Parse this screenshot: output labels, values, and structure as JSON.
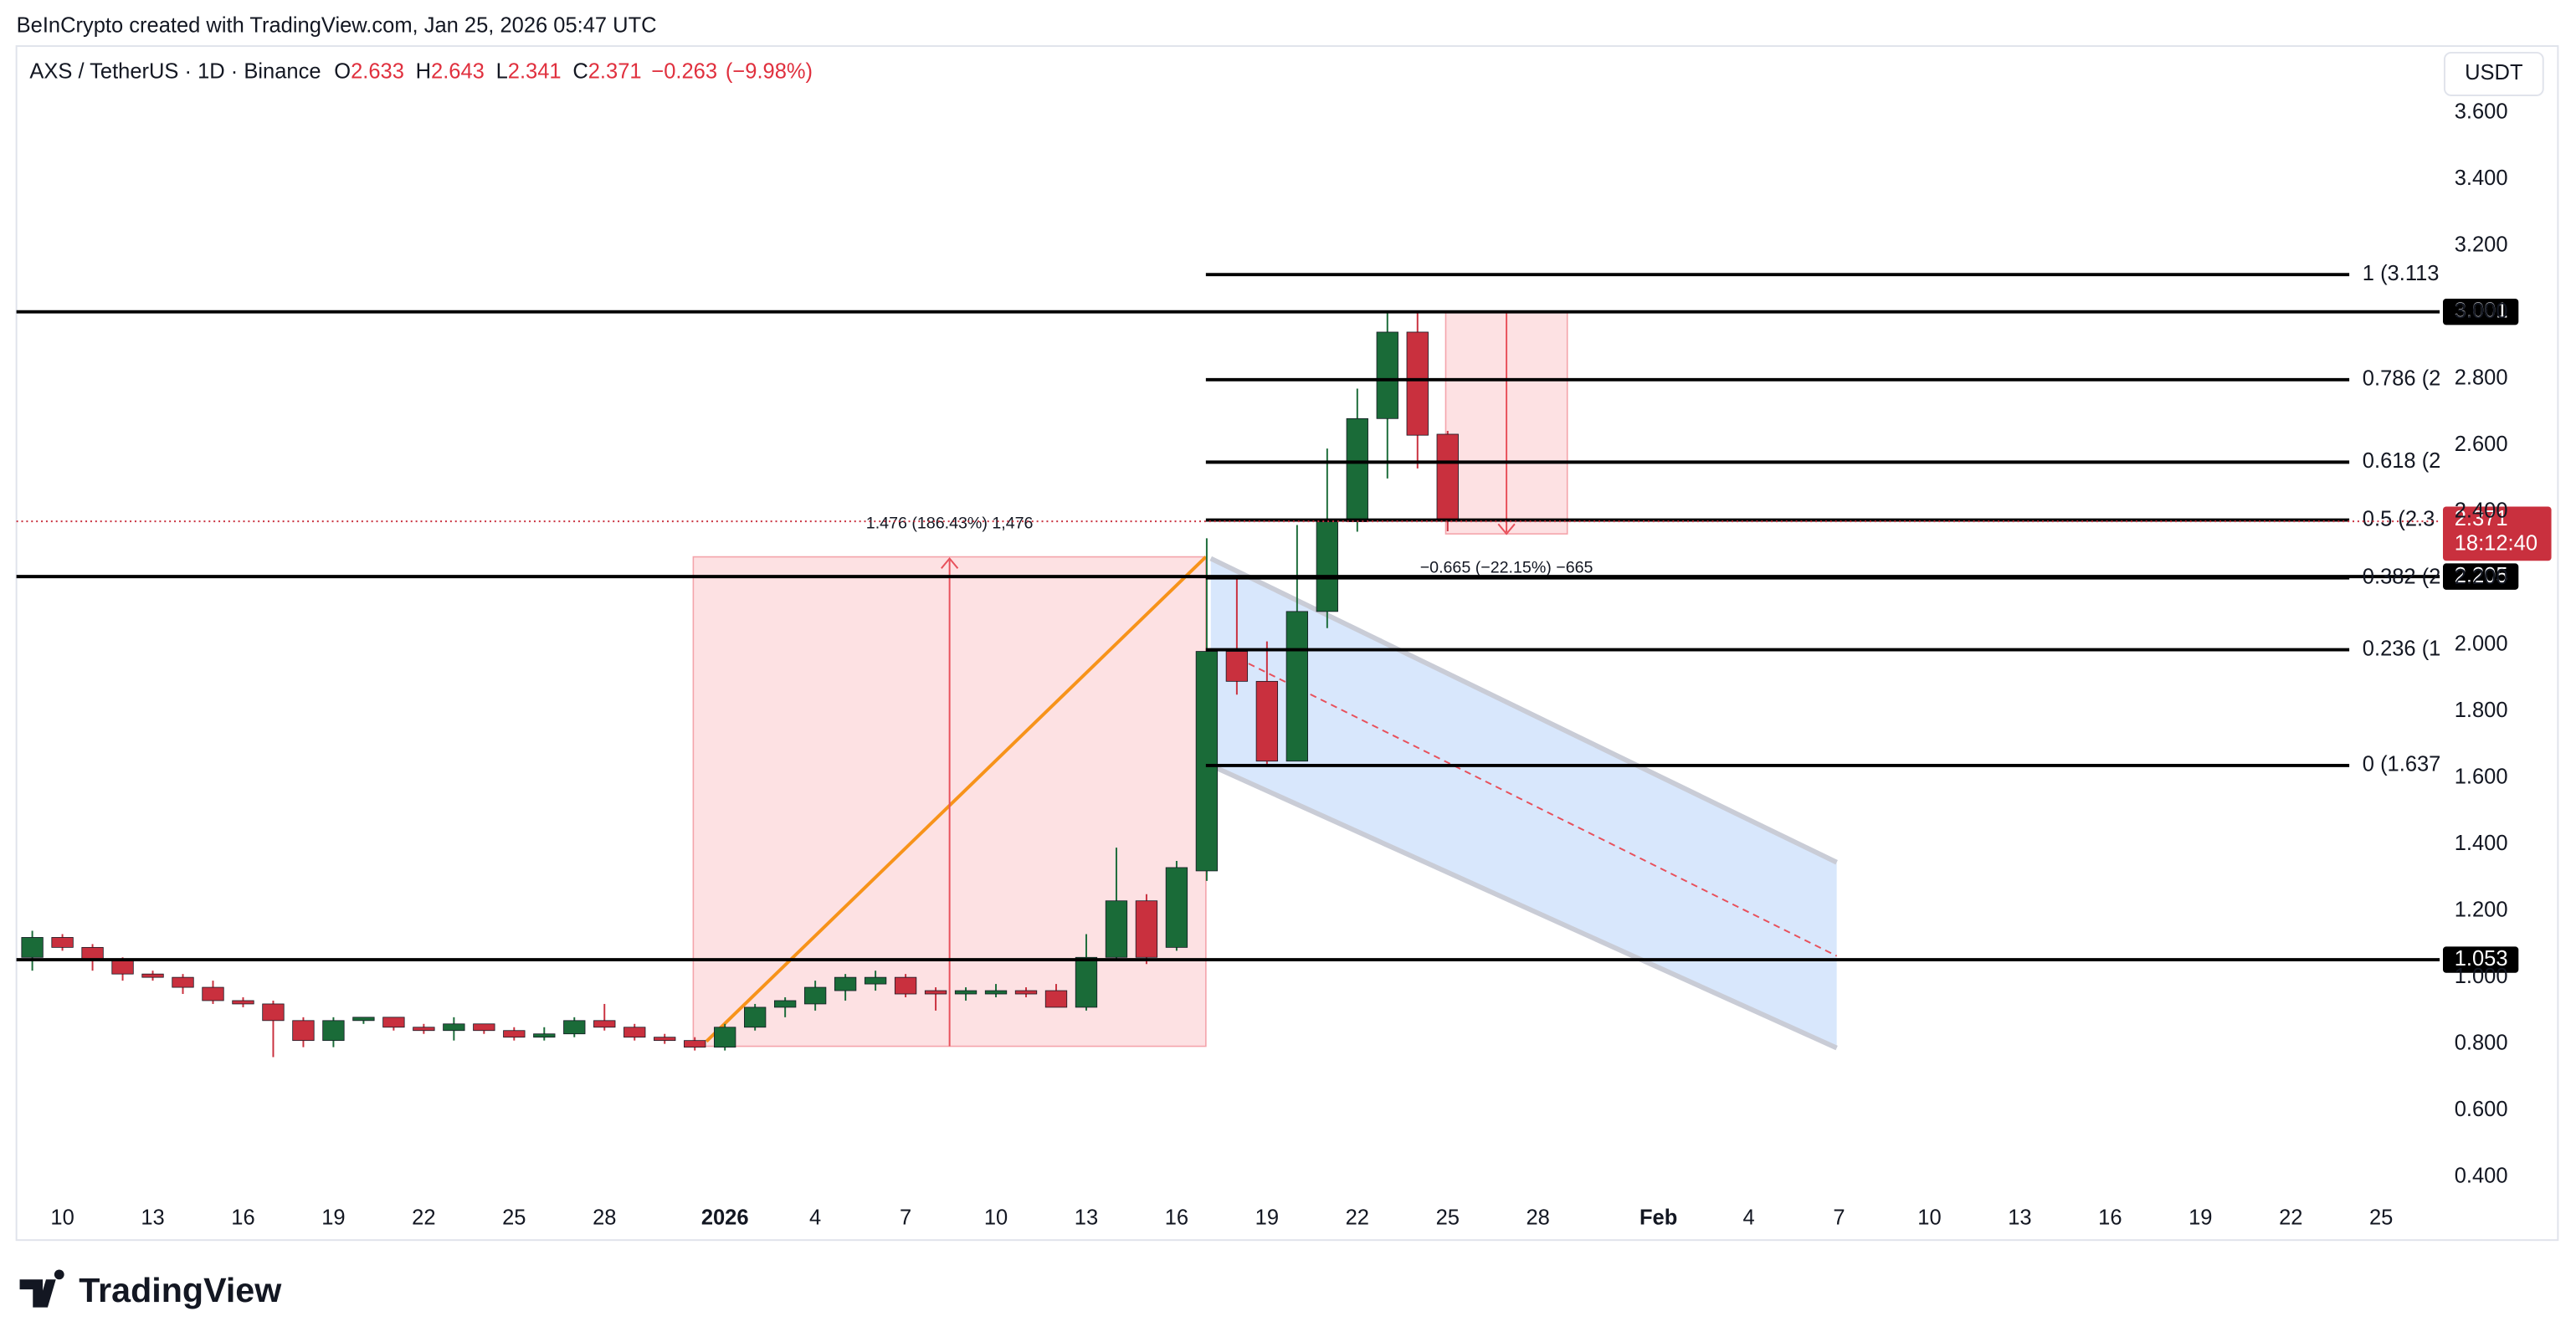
{
  "header": {
    "attribution": "BeInCrypto created with TradingView.com, Jan 25, 2026 05:47 UTC"
  },
  "chart_data": {
    "type": "candlestick",
    "symbol": "AXS / TetherUS · 1D · Binance",
    "legend_items": [
      {
        "label": "O",
        "value": 2.633
      },
      {
        "label": "H",
        "value": 2.643
      },
      {
        "label": "L",
        "value": 2.341
      },
      {
        "label": "C",
        "value": 2.371
      }
    ],
    "change": {
      "value": -0.263,
      "label": "−0.263"
    },
    "change_percent": {
      "value": -9.98,
      "label": "(−9.98%)"
    },
    "currency": "USDT",
    "up_color": "#1a6b38",
    "down_color": "#c9303e",
    "categories": [
      null,
      "10",
      null,
      null,
      "13",
      null,
      null,
      "16",
      null,
      null,
      "19",
      null,
      null,
      "22",
      null,
      null,
      "25",
      null,
      null,
      "28",
      null,
      null,
      null,
      "2026",
      null,
      null,
      "4",
      null,
      null,
      "7",
      null,
      null,
      "10",
      null,
      null,
      "13",
      null,
      null,
      "16",
      null,
      null,
      "19",
      null,
      null,
      "22",
      null,
      null,
      "25",
      null,
      null,
      "28",
      null,
      null,
      null,
      "Feb",
      null,
      null,
      "4",
      null,
      null,
      "7",
      null,
      null,
      "10",
      null,
      null,
      "13",
      null,
      null,
      "16",
      null,
      null,
      "19",
      null,
      null,
      "22",
      null,
      null,
      "25",
      null
    ],
    "open": [
      1.06,
      1.12,
      1.09,
      1.05,
      1.01,
      1.0,
      0.97,
      0.93,
      0.92,
      0.87,
      0.81,
      0.87,
      0.88,
      0.85,
      0.84,
      0.86,
      0.84,
      0.82,
      0.83,
      0.87,
      0.85,
      0.82,
      0.81,
      0.79,
      0.85,
      0.91,
      0.92,
      0.96,
      0.98,
      1.0,
      0.96,
      0.95,
      0.95,
      0.96,
      0.96,
      0.91,
      1.06,
      1.23,
      1.09,
      1.32,
      1.98,
      1.89,
      1.65,
      2.1,
      2.37,
      2.68,
      2.94,
      2.633,
      null,
      null,
      null,
      null,
      null,
      null,
      null,
      null,
      null,
      null,
      null,
      null,
      null,
      null,
      null,
      null,
      null,
      null,
      null,
      null,
      null,
      null,
      null,
      null,
      null,
      null,
      null,
      null,
      null,
      null,
      null,
      null
    ],
    "high": [
      1.14,
      1.13,
      1.1,
      1.06,
      1.02,
      1.01,
      0.99,
      0.94,
      0.93,
      0.88,
      0.88,
      0.88,
      0.88,
      0.86,
      0.88,
      0.86,
      0.85,
      0.85,
      0.88,
      0.92,
      0.86,
      0.83,
      0.82,
      0.86,
      0.92,
      0.94,
      0.99,
      1.01,
      1.02,
      1.01,
      0.97,
      0.97,
      0.98,
      0.97,
      0.98,
      1.13,
      1.39,
      1.25,
      1.35,
      2.32,
      2.2,
      2.01,
      2.36,
      2.59,
      2.77,
      3.0,
      3.0,
      2.643,
      null,
      null,
      null,
      null,
      null,
      null,
      null,
      null,
      null,
      null,
      null,
      null,
      null,
      null,
      null,
      null,
      null,
      null,
      null,
      null,
      null,
      null,
      null,
      null,
      null,
      null,
      null,
      null,
      null,
      null,
      null,
      null
    ],
    "low": [
      1.02,
      1.08,
      1.02,
      0.99,
      0.99,
      0.95,
      0.92,
      0.91,
      0.76,
      0.79,
      0.79,
      0.86,
      0.84,
      0.83,
      0.81,
      0.83,
      0.81,
      0.81,
      0.82,
      0.84,
      0.81,
      0.8,
      0.78,
      0.78,
      0.84,
      0.88,
      0.9,
      0.93,
      0.96,
      0.94,
      0.9,
      0.93,
      0.94,
      0.94,
      0.91,
      0.9,
      1.05,
      1.04,
      1.08,
      1.29,
      1.85,
      1.64,
      1.65,
      2.05,
      2.34,
      2.5,
      2.53,
      2.341,
      null,
      null,
      null,
      null,
      null,
      null,
      null,
      null,
      null,
      null,
      null,
      null,
      null,
      null,
      null,
      null,
      null,
      null,
      null,
      null,
      null,
      null,
      null,
      null,
      null,
      null,
      null,
      null,
      null,
      null,
      null,
      null
    ],
    "close": [
      1.12,
      1.09,
      1.05,
      1.01,
      1.0,
      0.97,
      0.93,
      0.92,
      0.87,
      0.81,
      0.87,
      0.88,
      0.85,
      0.84,
      0.86,
      0.84,
      0.82,
      0.83,
      0.87,
      0.85,
      0.82,
      0.81,
      0.79,
      0.85,
      0.91,
      0.93,
      0.97,
      1.0,
      1.0,
      0.95,
      0.95,
      0.96,
      0.96,
      0.95,
      0.91,
      1.06,
      1.23,
      1.06,
      1.33,
      1.98,
      1.89,
      1.65,
      2.1,
      2.37,
      2.68,
      2.94,
      2.63,
      2.371,
      null,
      null,
      null,
      null,
      null,
      null,
      null,
      null,
      null,
      null,
      null,
      null,
      null,
      null,
      null,
      null,
      null,
      null,
      null,
      null,
      null,
      null,
      null,
      null,
      null,
      null,
      null,
      null,
      null,
      null,
      null,
      null
    ],
    "ylim": [
      0.21,
      3.8
    ],
    "yticks": [
      {
        "value": 0.4,
        "label": "0.400"
      },
      {
        "value": 0.6,
        "label": "0.600"
      },
      {
        "value": 0.8,
        "label": "0.800"
      },
      {
        "value": 1.0,
        "label": "1.000"
      },
      {
        "value": 1.2,
        "label": "1.200"
      },
      {
        "value": 1.4,
        "label": "1.400"
      },
      {
        "value": 1.6,
        "label": "1.600"
      },
      {
        "value": 1.8,
        "label": "1.800"
      },
      {
        "value": 2.0,
        "label": "2.000"
      },
      {
        "value": 2.2,
        "label": "2.200"
      },
      {
        "value": 2.4,
        "label": "2.400"
      },
      {
        "value": 2.6,
        "label": "2.600"
      },
      {
        "value": 2.8,
        "label": "2.800"
      },
      {
        "value": 3.0,
        "label": "3.000"
      },
      {
        "value": 3.2,
        "label": "3.200"
      },
      {
        "value": 3.4,
        "label": "3.400"
      },
      {
        "value": 3.6,
        "label": "3.600"
      }
    ],
    "grid": false,
    "levels": [
      3.001,
      2.205,
      1.053
    ],
    "last_price": 2.371,
    "countdown": "18:12:40",
    "fib_levels": [
      {
        "value": 3.113,
        "label": "1 (3.113"
      },
      {
        "value": 2.797,
        "label": "0.786 (2"
      },
      {
        "value": 2.549,
        "label": "0.618 (2"
      },
      {
        "value": 2.375,
        "label": "0.5 (2.3"
      },
      {
        "value": 2.201,
        "label": "0.382 (2"
      },
      {
        "value": 1.985,
        "label": "0.236 (1"
      },
      {
        "value": 1.637,
        "label": "0 (1.637"
      }
    ],
    "measures": [
      "1.476 (186.43%) 1,476",
      "−0.665 (−22.15%) −665"
    ]
  },
  "footer": {
    "logo": "TradingView"
  }
}
